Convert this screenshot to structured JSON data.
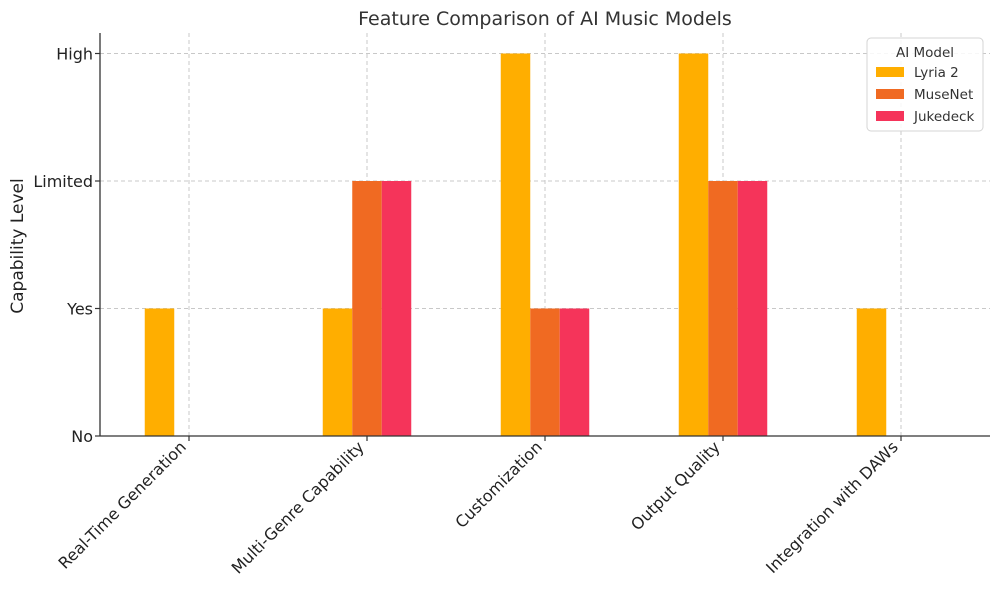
{
  "chart_data": {
    "type": "bar",
    "title": "Feature Comparison of AI Music Models",
    "xlabel": "",
    "ylabel": "Capability Level",
    "categories": [
      "Real-Time Generation",
      "Multi-Genre Capability",
      "Customization",
      "Output Quality",
      "Integration with DAWs"
    ],
    "y_tick_labels": [
      "No",
      "Yes",
      "Limited",
      "High"
    ],
    "y_tick_values": [
      0,
      1,
      2,
      3
    ],
    "ylim": [
      0,
      3.15
    ],
    "grid": true,
    "legend": {
      "title": "AI Model",
      "placement": "top-right"
    },
    "series": [
      {
        "name": "Lyria 2",
        "color": "#FFAE00",
        "values": [
          1,
          1,
          3,
          3,
          1
        ]
      },
      {
        "name": "MuseNet",
        "color": "#F06A22",
        "values": [
          0,
          2,
          1,
          2,
          0
        ]
      },
      {
        "name": "Jukedeck",
        "color": "#F5345A",
        "values": [
          0,
          2,
          1,
          2,
          0
        ]
      }
    ]
  }
}
